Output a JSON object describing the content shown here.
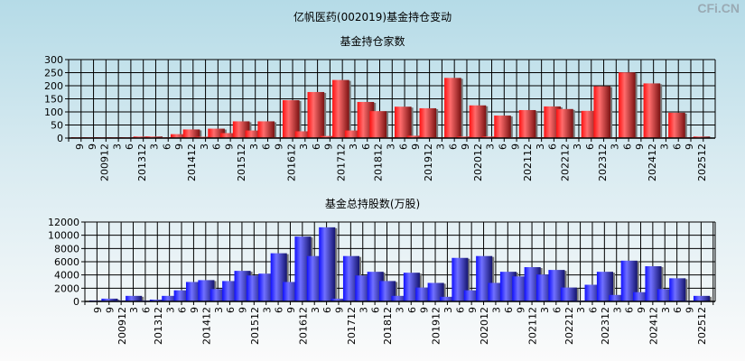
{
  "title": "亿帆医药(002019)基金持仓变动",
  "watermark": "CFi.CN",
  "colors": {
    "red_bar": "#ee1c1c",
    "blue_bar": "#2a2aee",
    "grid": "#000000"
  },
  "chart_data": [
    {
      "type": "bar",
      "title": "基金持仓家数",
      "xlabel": "",
      "ylabel": "",
      "ylim": [
        0,
        300
      ],
      "yticks": [
        0,
        50,
        100,
        150,
        200,
        250,
        300
      ],
      "grid": true,
      "categories": [
        "9",
        "9",
        "200912",
        "3",
        "6",
        "201312",
        "3",
        "6",
        "9",
        "201412",
        "3",
        "6",
        "9",
        "201512",
        "3",
        "6",
        "9",
        "201612",
        "3",
        "6",
        "9",
        "201712",
        "3",
        "6",
        "201812",
        "3",
        "6",
        "9",
        "201912",
        "3",
        "6",
        "9",
        "202012",
        "3",
        "6",
        "9",
        "202112",
        "3",
        "6",
        "202212",
        "3",
        "6",
        "202312",
        "3",
        "6",
        "9",
        "202412",
        "3",
        "6",
        "9",
        "202512"
      ],
      "values": [
        2,
        2,
        2,
        2,
        2,
        6,
        6,
        3,
        15,
        33,
        5,
        36,
        19,
        64,
        29,
        64,
        3,
        145,
        26,
        176,
        8,
        222,
        29,
        138,
        103,
        3,
        120,
        9,
        114,
        2,
        230,
        6,
        125,
        6,
        86,
        2,
        107,
        2,
        121,
        111,
        2,
        104,
        198,
        2,
        251,
        2,
        209,
        2,
        97,
        2,
        6
      ]
    },
    {
      "type": "bar",
      "title": "基金总持股数(万股)",
      "xlabel": "",
      "ylabel": "",
      "ylim": [
        0,
        12000
      ],
      "yticks": [
        0,
        2000,
        4000,
        6000,
        8000,
        10000,
        12000
      ],
      "grid": true,
      "categories": [
        "9",
        "9",
        "200912",
        "3",
        "6",
        "201312",
        "3",
        "6",
        "9",
        "201412",
        "3",
        "6",
        "9",
        "201512",
        "3",
        "6",
        "9",
        "201612",
        "3",
        "6",
        "9",
        "201712",
        "3",
        "6",
        "201812",
        "3",
        "6",
        "9",
        "201912",
        "3",
        "6",
        "9",
        "202012",
        "3",
        "6",
        "9",
        "202112",
        "3",
        "6",
        "202212",
        "3",
        "6",
        "202312",
        "3",
        "6",
        "9",
        "202412",
        "3",
        "6",
        "9",
        "202512"
      ],
      "values": [
        150,
        420,
        150,
        840,
        150,
        280,
        840,
        1680,
        2940,
        3220,
        1870,
        3080,
        4620,
        3920,
        4200,
        7280,
        2940,
        9800,
        6860,
        11200,
        420,
        6860,
        3920,
        4480,
        3080,
        840,
        4340,
        2100,
        2800,
        700,
        6580,
        1680,
        6860,
        2800,
        4480,
        3780,
        5180,
        4060,
        4760,
        2100,
        100,
        2520,
        4480,
        980,
        6160,
        1400,
        5320,
        1870,
        3500,
        80,
        840
      ]
    }
  ]
}
